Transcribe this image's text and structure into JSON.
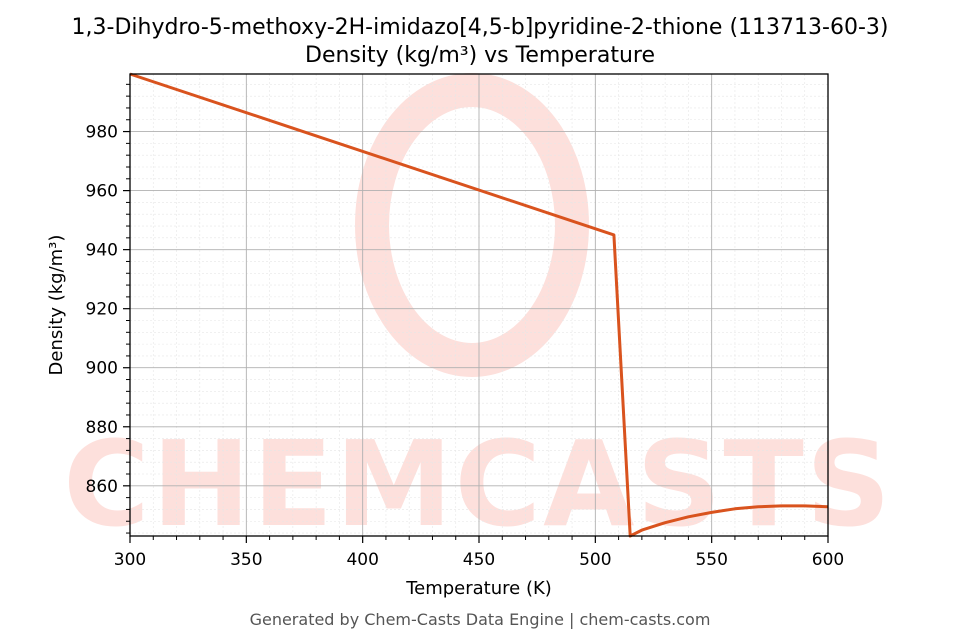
{
  "chart_data": {
    "type": "line",
    "title": "1,3-Dihydro-5-methoxy-2H-imidazo[4,5-b]pyridine-2-thione (113713-60-3)",
    "subtitle": "Density (kg/m³) vs Temperature",
    "xlabel": "Temperature (K)",
    "ylabel": "Density (kg/m³)",
    "xlim": [
      300,
      600
    ],
    "ylim": [
      843,
      999.5
    ],
    "xticks": [
      300,
      350,
      400,
      450,
      500,
      550,
      600
    ],
    "yticks": [
      860,
      880,
      900,
      920,
      940,
      960,
      980
    ],
    "grid": true,
    "minor_grid": true,
    "line_color": "#d9531e",
    "series": [
      {
        "x": [
          300,
          508,
          515,
          520,
          530,
          540,
          550,
          560,
          570,
          580,
          590,
          600
        ],
        "y": [
          999.5,
          945,
          843,
          845,
          847.5,
          849.5,
          851,
          852.2,
          852.9,
          853.2,
          853.2,
          852.9
        ]
      }
    ],
    "watermark": "CHEMCASTS",
    "footer": "Generated by Chem-Casts Data Engine | chem-casts.com"
  }
}
